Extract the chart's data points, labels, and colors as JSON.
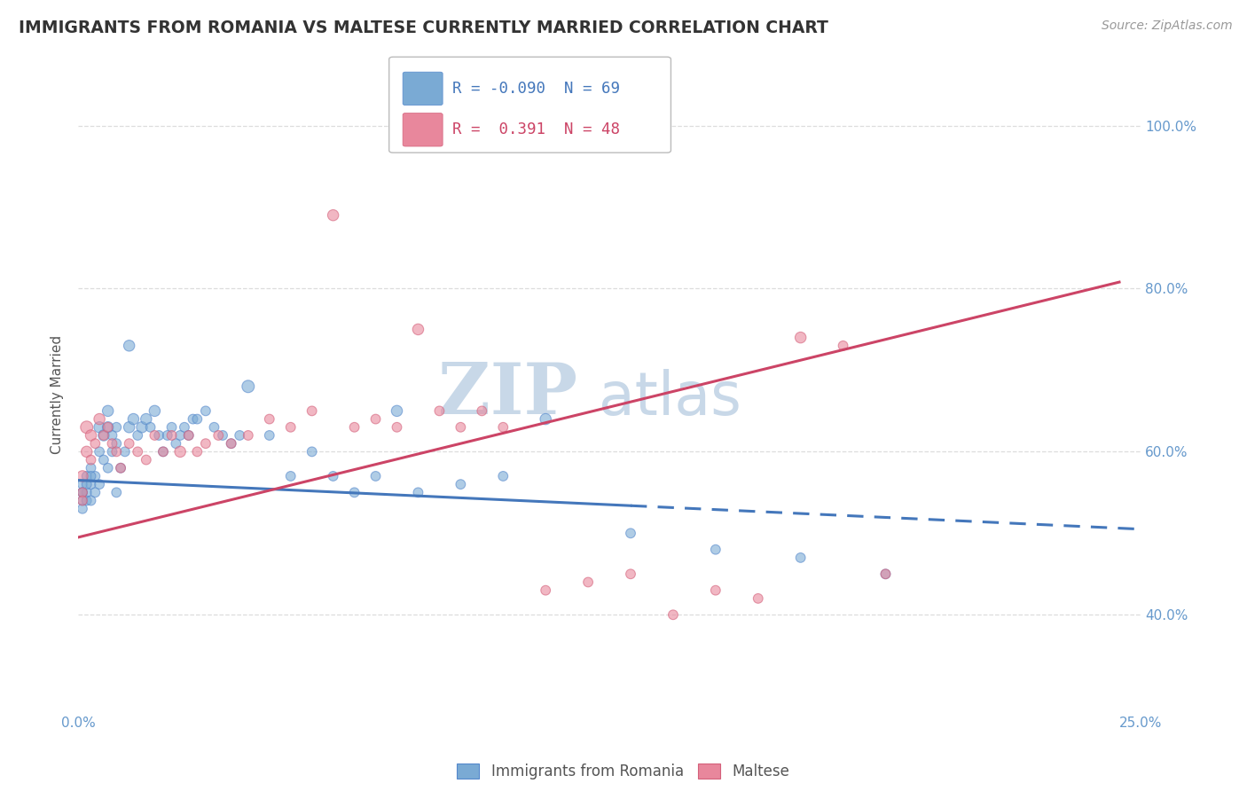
{
  "title": "IMMIGRANTS FROM ROMANIA VS MALTESE CURRENTLY MARRIED CORRELATION CHART",
  "source_text": "Source: ZipAtlas.com",
  "ylabel": "Currently Married",
  "xlim": [
    0.0,
    0.25
  ],
  "ylim": [
    0.28,
    1.06
  ],
  "xticks": [
    0.0,
    0.05,
    0.1,
    0.15,
    0.2,
    0.25
  ],
  "xticklabels": [
    "0.0%",
    "",
    "",
    "",
    "",
    "25.0%"
  ],
  "yticks": [
    0.4,
    0.6,
    0.8,
    1.0
  ],
  "right_yticklabels": [
    "40.0%",
    "60.0%",
    "80.0%",
    "100.0%"
  ],
  "blue_color": "#7aaad4",
  "pink_color": "#e8879c",
  "blue_edge": "#5588cc",
  "pink_edge": "#d4607a",
  "blue_trend_color": "#4477bb",
  "pink_trend_color": "#cc4466",
  "legend_R1": "-0.090",
  "legend_N1": "69",
  "legend_R2": "0.391",
  "legend_N2": "48",
  "watermark": "ZIPatlas",
  "watermark_color": "#c8d8e8",
  "blue_scatter_x": [
    0.001,
    0.001,
    0.001,
    0.001,
    0.002,
    0.002,
    0.002,
    0.003,
    0.003,
    0.003,
    0.004,
    0.004,
    0.005,
    0.005,
    0.006,
    0.006,
    0.007,
    0.007,
    0.008,
    0.008,
    0.009,
    0.009,
    0.01,
    0.011,
    0.012,
    0.013,
    0.014,
    0.015,
    0.016,
    0.017,
    0.018,
    0.019,
    0.02,
    0.021,
    0.022,
    0.023,
    0.024,
    0.025,
    0.026,
    0.027,
    0.028,
    0.03,
    0.032,
    0.034,
    0.036,
    0.038,
    0.04,
    0.045,
    0.05,
    0.055,
    0.06,
    0.065,
    0.07,
    0.075,
    0.08,
    0.09,
    0.1,
    0.11,
    0.13,
    0.15,
    0.17,
    0.19,
    0.001,
    0.002,
    0.003,
    0.005,
    0.007,
    0.009,
    0.012
  ],
  "blue_scatter_y": [
    0.56,
    0.54,
    0.53,
    0.55,
    0.57,
    0.55,
    0.54,
    0.56,
    0.58,
    0.54,
    0.57,
    0.55,
    0.63,
    0.6,
    0.62,
    0.59,
    0.63,
    0.65,
    0.62,
    0.6,
    0.63,
    0.61,
    0.58,
    0.6,
    0.63,
    0.64,
    0.62,
    0.63,
    0.64,
    0.63,
    0.65,
    0.62,
    0.6,
    0.62,
    0.63,
    0.61,
    0.62,
    0.63,
    0.62,
    0.64,
    0.64,
    0.65,
    0.63,
    0.62,
    0.61,
    0.62,
    0.68,
    0.62,
    0.57,
    0.6,
    0.57,
    0.55,
    0.57,
    0.65,
    0.55,
    0.56,
    0.57,
    0.64,
    0.5,
    0.48,
    0.47,
    0.45,
    0.55,
    0.56,
    0.57,
    0.56,
    0.58,
    0.55,
    0.73
  ],
  "blue_scatter_sizes": [
    60,
    60,
    60,
    60,
    60,
    60,
    60,
    60,
    60,
    60,
    60,
    60,
    80,
    60,
    80,
    60,
    80,
    80,
    60,
    60,
    60,
    60,
    60,
    60,
    80,
    80,
    60,
    80,
    80,
    60,
    80,
    60,
    60,
    60,
    60,
    60,
    60,
    60,
    60,
    60,
    60,
    60,
    60,
    60,
    60,
    60,
    100,
    60,
    60,
    60,
    60,
    60,
    60,
    80,
    60,
    60,
    60,
    80,
    60,
    60,
    60,
    60,
    60,
    60,
    60,
    60,
    60,
    60,
    80
  ],
  "pink_scatter_x": [
    0.001,
    0.001,
    0.001,
    0.002,
    0.002,
    0.003,
    0.003,
    0.004,
    0.005,
    0.006,
    0.007,
    0.008,
    0.009,
    0.01,
    0.012,
    0.014,
    0.016,
    0.018,
    0.02,
    0.022,
    0.024,
    0.026,
    0.028,
    0.03,
    0.033,
    0.036,
    0.04,
    0.045,
    0.05,
    0.055,
    0.06,
    0.065,
    0.07,
    0.075,
    0.08,
    0.085,
    0.09,
    0.095,
    0.1,
    0.11,
    0.12,
    0.13,
    0.14,
    0.15,
    0.16,
    0.17,
    0.18,
    0.19
  ],
  "pink_scatter_y": [
    0.57,
    0.55,
    0.54,
    0.63,
    0.6,
    0.62,
    0.59,
    0.61,
    0.64,
    0.62,
    0.63,
    0.61,
    0.6,
    0.58,
    0.61,
    0.6,
    0.59,
    0.62,
    0.6,
    0.62,
    0.6,
    0.62,
    0.6,
    0.61,
    0.62,
    0.61,
    0.62,
    0.64,
    0.63,
    0.65,
    0.89,
    0.63,
    0.64,
    0.63,
    0.75,
    0.65,
    0.63,
    0.65,
    0.63,
    0.43,
    0.44,
    0.45,
    0.4,
    0.43,
    0.42,
    0.74,
    0.73,
    0.45
  ],
  "pink_scatter_sizes": [
    80,
    60,
    60,
    100,
    80,
    80,
    60,
    60,
    80,
    60,
    60,
    60,
    60,
    60,
    60,
    60,
    60,
    60,
    60,
    60,
    80,
    60,
    60,
    60,
    60,
    60,
    60,
    60,
    60,
    60,
    80,
    60,
    60,
    60,
    80,
    60,
    60,
    60,
    60,
    60,
    60,
    60,
    60,
    60,
    60,
    80,
    60,
    60
  ],
  "blue_trend_y0": 0.565,
  "blue_trend_y1": 0.505,
  "blue_trend_split": 0.13,
  "pink_trend_y0": 0.495,
  "pink_trend_y1": 0.808,
  "pink_trend_x1": 0.245,
  "background_color": "#ffffff",
  "grid_color": "#dddddd",
  "tick_color": "#6699cc",
  "title_color": "#333333",
  "title_fontsize": 13.5,
  "source_fontsize": 10,
  "axis_label_color": "#555555",
  "tick_fontsize": 11,
  "bottom_legend_labels": [
    "Immigrants from Romania",
    "Maltese"
  ]
}
